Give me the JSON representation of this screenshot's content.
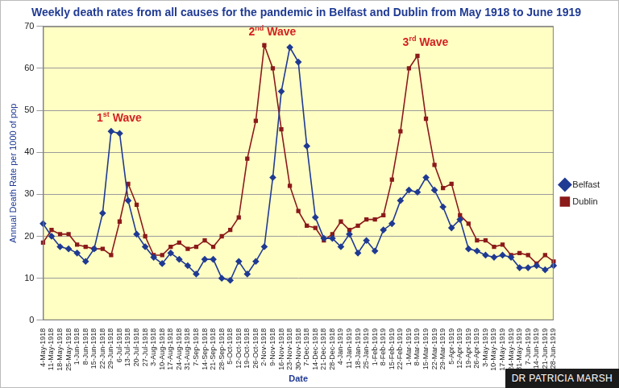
{
  "chart_data": {
    "type": "line",
    "title": "Weekly death rates from all causes for the pandemic in Belfast and Dublin from May 1918 to June 1919",
    "x_label": "Date",
    "y_label": "Annual Death Rate per 1000 of pop",
    "categories": [
      "4-May-1918",
      "11-May-1918",
      "18-May-1918",
      "25-May-1918",
      "1-Jun-1918",
      "8-Jun-1918",
      "15-Jun-1918",
      "22-Jun-1918",
      "29-Jun-1918",
      "6-Jul-1918",
      "13-Jul-1918",
      "20-Jul-1918",
      "27-Jul-1918",
      "3-Aug-1918",
      "10-Aug-1918",
      "17-Aug-1918",
      "24-Aug-1918",
      "31-Aug-1918",
      "7-Sep-1918",
      "14-Sep-1918",
      "21-Sep-1918",
      "28-Sep-1918",
      "5-Oct-1918",
      "12-Oct-1918",
      "19-Oct-1918",
      "26-Oct-1918",
      "2-Nov-1918",
      "9-Nov-1918",
      "16-Nov-1918",
      "23-Nov-1918",
      "30-Nov-1918",
      "7-Dec-1918",
      "14-Dec-1918",
      "21-Dec-1918",
      "28-Dec-1918",
      "4-Jan-1919",
      "11-Jan-1919",
      "18-Jan-1919",
      "25-Jan-1919",
      "1-Feb-1919",
      "8-Feb-1919",
      "15-Feb-1919",
      "22-Feb-1919",
      "1-Mar-1919",
      "8-Mar-1919",
      "15-Mar-1919",
      "22-Mar-1919",
      "29-Mar-1919",
      "5-Apr-1919",
      "12-Apr-1919",
      "19-Apr-1919",
      "26-Apr-1919",
      "3-May-1919",
      "10-May-1919",
      "17-May-1919",
      "24-May-1919",
      "31-May-1919",
      "7-Jun-1919",
      "14-Jun-1919",
      "21-Jun-1919",
      "28-Jun-1919"
    ],
    "series": [
      {
        "name": "Belfast",
        "color": "#1f3a93",
        "marker": "diamond",
        "values": [
          23,
          20,
          17.5,
          17,
          16,
          14,
          17,
          25.5,
          45,
          44.5,
          28.5,
          20.5,
          17.5,
          15,
          13.5,
          16,
          14.5,
          13,
          11,
          14.5,
          14.5,
          10,
          9.5,
          14,
          11,
          14,
          17.5,
          34,
          54.5,
          65,
          61.5,
          41.5,
          24.5,
          19.5,
          19.5,
          17.5,
          20.5,
          16,
          19,
          16.5,
          21.5,
          23,
          28.5,
          31,
          30.5,
          34,
          31,
          27,
          22,
          24,
          17,
          16.5,
          15.5,
          15,
          15.5,
          15,
          12.5,
          12.5,
          13,
          12,
          13
        ]
      },
      {
        "name": "Dublin",
        "color": "#8b1a1a",
        "marker": "square",
        "values": [
          18.5,
          21.5,
          20.5,
          20.5,
          18,
          17.5,
          17,
          17,
          15.5,
          23.5,
          32.5,
          27.5,
          20,
          15.5,
          15.5,
          17.5,
          18.5,
          17,
          17.5,
          19,
          17.5,
          20,
          21.5,
          24.5,
          38.5,
          47.5,
          65.5,
          60,
          45.5,
          32,
          26,
          22.5,
          22,
          19,
          20.5,
          23.5,
          21.5,
          22.5,
          24,
          24,
          25,
          33.5,
          45,
          60,
          63,
          48,
          37,
          31.5,
          32.5,
          25,
          23,
          19,
          19,
          17.5,
          18,
          15.5,
          16,
          15.5,
          13.5,
          15.5,
          14
        ]
      }
    ],
    "annotations": [
      "1st Wave",
      "2nd Wave",
      "3rd Wave"
    ],
    "credit": "DR PATRICIA MARSH",
    "ylim": [
      0,
      70
    ],
    "yticks": [
      0,
      10,
      20,
      30,
      40,
      50,
      60,
      70
    ],
    "grid": true,
    "legend": "right"
  }
}
